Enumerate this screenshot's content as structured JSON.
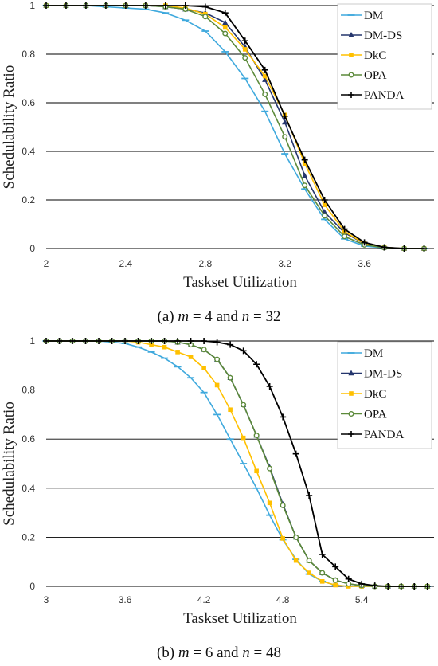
{
  "colors": {
    "DM": "#3fa9dd",
    "DM-DS": "#25366d",
    "DkC": "#ffc000",
    "OPA": "#5c8a3a",
    "PANDA": "#000000",
    "grid": "#000000"
  },
  "chart_data": [
    {
      "type": "line",
      "panel": "a",
      "caption": {
        "prefix": "(a)",
        "m": "m",
        "eq1": " = 4",
        "and": " and ",
        "n": "n",
        "eq2": " = 32"
      },
      "xlabel": "Taskset Utilization",
      "ylabel": "Schedulability Ratio",
      "xlim": [
        2,
        3.95
      ],
      "ylim": [
        0,
        1
      ],
      "xticks": [
        2,
        2.4,
        2.8,
        3.2,
        3.6
      ],
      "xtick_labels": [
        "2",
        "2.4",
        "2.8",
        "3.2",
        "3.6"
      ],
      "yticks": [
        0,
        0.2,
        0.4,
        0.6,
        0.8,
        1
      ],
      "ytick_labels": [
        "0",
        "0.2",
        "0.4",
        "0.6",
        "0.8",
        "1"
      ],
      "grid": "horizontal",
      "legend": "top-right",
      "x": [
        2.0,
        2.1,
        2.2,
        2.3,
        2.4,
        2.5,
        2.6,
        2.7,
        2.8,
        2.9,
        3.0,
        3.1,
        3.2,
        3.3,
        3.4,
        3.5,
        3.6,
        3.7,
        3.8,
        3.9
      ],
      "series": [
        {
          "name": "DM",
          "marker": "dash",
          "values": [
            1,
            1,
            1,
            0.995,
            0.99,
            0.985,
            0.97,
            0.94,
            0.895,
            0.81,
            0.7,
            0.565,
            0.39,
            0.245,
            0.12,
            0.04,
            0.01,
            0.003,
            0,
            0
          ]
        },
        {
          "name": "DM-DS",
          "marker": "triangle",
          "values": [
            1,
            1,
            1,
            1,
            1,
            1,
            0.995,
            0.985,
            0.97,
            0.93,
            0.83,
            0.695,
            0.52,
            0.3,
            0.15,
            0.065,
            0.02,
            0.005,
            0,
            0
          ]
        },
        {
          "name": "DkC",
          "marker": "square",
          "values": [
            1,
            1,
            1,
            1,
            1,
            1,
            1,
            0.99,
            0.965,
            0.91,
            0.82,
            0.71,
            0.55,
            0.35,
            0.18,
            0.07,
            0.02,
            0.005,
            0,
            0
          ]
        },
        {
          "name": "OPA",
          "marker": "circle",
          "values": [
            1,
            1,
            1,
            1,
            1,
            1,
            0.995,
            0.985,
            0.955,
            0.885,
            0.785,
            0.635,
            0.46,
            0.26,
            0.135,
            0.05,
            0.015,
            0.003,
            0,
            0
          ]
        },
        {
          "name": "PANDA",
          "marker": "plus",
          "values": [
            1,
            1,
            1,
            1,
            1,
            1,
            1,
            1,
            0.995,
            0.97,
            0.855,
            0.735,
            0.545,
            0.365,
            0.2,
            0.08,
            0.025,
            0.005,
            0,
            0
          ]
        }
      ]
    },
    {
      "type": "line",
      "panel": "b",
      "caption": {
        "prefix": "(b)",
        "m": "m",
        "eq1": " = 6",
        "and": " and ",
        "n": "n",
        "eq2": " = 48"
      },
      "xlabel": "Taskset Utilization",
      "ylabel": "Schedulability Ratio",
      "xlim": [
        3,
        5.95
      ],
      "ylim": [
        0,
        1
      ],
      "xticks": [
        3,
        3.6,
        4.2,
        4.8,
        5.4
      ],
      "xtick_labels": [
        "3",
        "3.6",
        "4.2",
        "4.8",
        "5.4"
      ],
      "yticks": [
        0,
        0.2,
        0.4,
        0.6,
        0.8,
        1
      ],
      "ytick_labels": [
        "0",
        "0.2",
        "0.4",
        "0.6",
        "0.8",
        "1"
      ],
      "grid": "horizontal",
      "legend": "top-right",
      "x": [
        3.0,
        3.1,
        3.2,
        3.3,
        3.4,
        3.5,
        3.6,
        3.7,
        3.8,
        3.9,
        4.0,
        4.1,
        4.2,
        4.3,
        4.4,
        4.5,
        4.6,
        4.7,
        4.8,
        4.9,
        5.0,
        5.1,
        5.2,
        5.3,
        5.4,
        5.5,
        5.6,
        5.7,
        5.8,
        5.9
      ],
      "series": [
        {
          "name": "DM",
          "marker": "dash",
          "values": [
            1,
            1,
            1,
            1,
            1,
            0.995,
            0.99,
            0.975,
            0.955,
            0.93,
            0.895,
            0.85,
            0.79,
            0.7,
            0.6,
            0.5,
            0.4,
            0.29,
            0.19,
            0.11,
            0.05,
            0.02,
            0.005,
            0,
            0,
            0,
            0,
            0,
            0,
            0
          ]
        },
        {
          "name": "DM-DS",
          "marker": "triangle",
          "values": [
            1,
            1,
            1,
            1,
            1,
            1,
            1,
            1,
            1,
            1,
            0.995,
            0.985,
            0.965,
            0.925,
            0.85,
            0.74,
            0.615,
            0.485,
            0.335,
            0.2,
            0.105,
            0.055,
            0.025,
            0.01,
            0.003,
            0,
            0,
            0,
            0,
            0
          ]
        },
        {
          "name": "DkC",
          "marker": "square",
          "values": [
            1,
            1,
            1,
            1,
            1,
            1,
            1,
            0.995,
            0.985,
            0.975,
            0.955,
            0.935,
            0.89,
            0.82,
            0.72,
            0.605,
            0.47,
            0.34,
            0.195,
            0.105,
            0.055,
            0.02,
            0.005,
            0,
            0,
            0,
            0,
            0,
            0,
            0
          ]
        },
        {
          "name": "OPA",
          "marker": "circle",
          "values": [
            1,
            1,
            1,
            1,
            1,
            1,
            1,
            1,
            1,
            1,
            0.995,
            0.985,
            0.965,
            0.925,
            0.85,
            0.74,
            0.615,
            0.48,
            0.33,
            0.2,
            0.105,
            0.055,
            0.025,
            0.01,
            0.003,
            0,
            0,
            0,
            0,
            0
          ]
        },
        {
          "name": "PANDA",
          "marker": "plus",
          "values": [
            1,
            1,
            1,
            1,
            1,
            1,
            1,
            1,
            1,
            1,
            1,
            1,
            1,
            0.995,
            0.985,
            0.96,
            0.905,
            0.815,
            0.69,
            0.54,
            0.37,
            0.13,
            0.08,
            0.03,
            0.01,
            0.003,
            0,
            0,
            0,
            0
          ]
        }
      ]
    }
  ]
}
